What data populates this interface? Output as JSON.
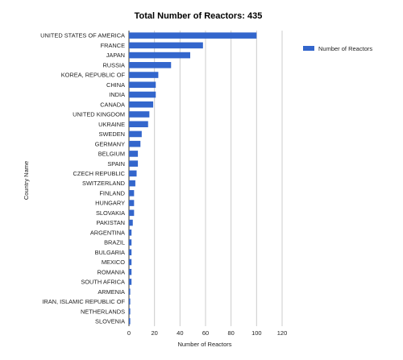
{
  "chart_data": {
    "type": "bar",
    "orientation": "horizontal",
    "title": "Total Number of Reactors: 435",
    "xlabel": "Number of Reactors",
    "ylabel": "Country Name",
    "xlim": [
      0,
      120
    ],
    "xticks": [
      0,
      20,
      40,
      60,
      80,
      100,
      120
    ],
    "grid": true,
    "legend_position": "right",
    "bar_color": "#3366cc",
    "categories": [
      "UNITED STATES OF AMERICA",
      "FRANCE",
      "JAPAN",
      "RUSSIA",
      "KOREA, REPUBLIC OF",
      "CHINA",
      "INDIA",
      "CANADA",
      "UNITED KINGDOM",
      "UKRAINE",
      "SWEDEN",
      "GERMANY",
      "BELGIUM",
      "SPAIN",
      "CZECH REPUBLIC",
      "SWITZERLAND",
      "FINLAND",
      "HUNGARY",
      "SLOVAKIA",
      "PAKISTAN",
      "ARGENTINA",
      "BRAZIL",
      "BULGARIA",
      "MEXICO",
      "ROMANIA",
      "SOUTH AFRICA",
      "ARMENIA",
      "IRAN, ISLAMIC REPUBLIC OF",
      "NETHERLANDS",
      "SLOVENIA"
    ],
    "series": [
      {
        "name": "Number of Reactors",
        "values": [
          100,
          58,
          48,
          33,
          23,
          21,
          21,
          19,
          16,
          15,
          10,
          9,
          7,
          7,
          6,
          5,
          4,
          4,
          4,
          3,
          2,
          2,
          2,
          2,
          2,
          2,
          1,
          1,
          1,
          1
        ]
      }
    ]
  }
}
